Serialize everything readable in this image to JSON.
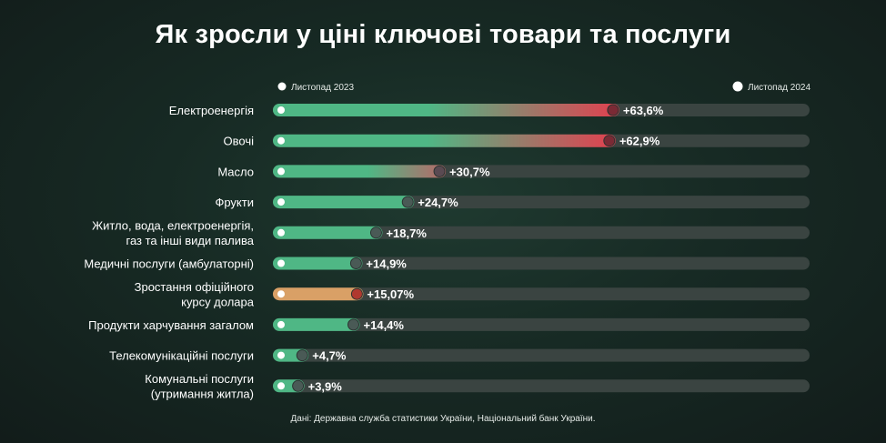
{
  "title": "Як зросли у ціні ключові товари та послуги",
  "source": "Дані: Державна служба статистики України, Національний банк України.",
  "colors": {
    "green": "#4fb785",
    "red": "#e2404f",
    "orange": "#d9a066",
    "track": "#3a4441",
    "end_marker": "#4a5a56",
    "start_marker": "#ffffff"
  },
  "chart_data": {
    "type": "bar",
    "legend": [
      "Листопад 2023",
      "Листопад 2024"
    ],
    "legend_position": "top",
    "unit": "%",
    "xlim": [
      0,
      100
    ],
    "categories": [
      "Електроенергія",
      "Овочі",
      "Масло",
      "Фрукти",
      "Житло, вода, електроенергія, газ та інші види палива",
      "Медичні послуги (амбулаторні)",
      "Зростання офіційного курсу долара",
      "Продукти харчування загалом",
      "Телекомунікаційні послуги",
      "Комунальні послуги (утримання житла)"
    ],
    "label_lines": [
      [
        "Електроенергія"
      ],
      [
        "Овочі"
      ],
      [
        "Масло"
      ],
      [
        "Фрукти"
      ],
      [
        "Житло, вода, електроенергія,",
        "газ та інші види палива"
      ],
      [
        "Медичні послуги (амбулаторні)"
      ],
      [
        "Зростання офіційного",
        "курсу долара"
      ],
      [
        "Продукти харчування загалом"
      ],
      [
        "Телекомунікаційні послуги"
      ],
      [
        "Комунальні послуги",
        "(утримання житла)"
      ]
    ],
    "values": [
      63.6,
      62.9,
      30.7,
      24.7,
      18.7,
      14.9,
      15.07,
      14.4,
      4.7,
      3.9
    ],
    "value_labels": [
      "+63,6%",
      "+62,9%",
      "+30,7%",
      "+24,7%",
      "+18,7%",
      "+14,9%",
      "+15,07%",
      "+14,4%",
      "+4,7%",
      "+3,9%"
    ],
    "bar_style": [
      "hot",
      "hot",
      "warm",
      "normal",
      "normal",
      "normal",
      "currency",
      "normal",
      "normal",
      "normal"
    ]
  }
}
